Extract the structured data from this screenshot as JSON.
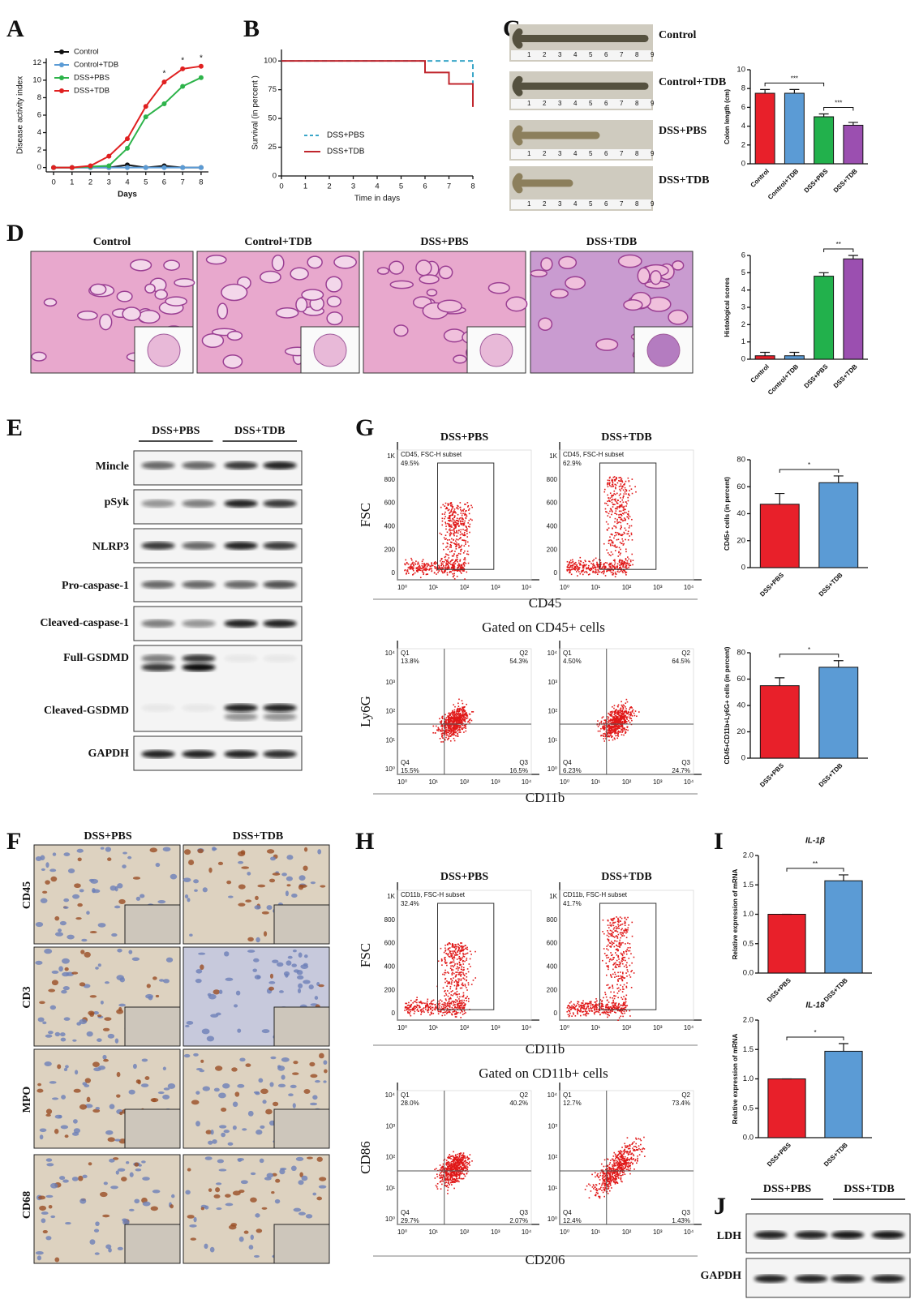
{
  "panel_labels": [
    "A",
    "B",
    "C",
    "D",
    "E",
    "F",
    "G",
    "H",
    "I",
    "J"
  ],
  "chart_data": [
    {
      "type": "line",
      "xlabel": "Days",
      "ylabel": "Disease activity index",
      "x": [
        0,
        1,
        2,
        3,
        4,
        5,
        6,
        7,
        8
      ],
      "xlim": [
        -0.4,
        8.4
      ],
      "xticks": [
        0,
        1,
        2,
        3,
        4,
        5,
        6,
        7,
        8
      ],
      "ylim": [
        -0.5,
        12.5
      ],
      "yticks": [
        0,
        2,
        4,
        6,
        8,
        10,
        12
      ],
      "legend": "upper left",
      "series": [
        {
          "name": "Control",
          "color": "#111111",
          "values": [
            0,
            0,
            0,
            0,
            0.3,
            0,
            0.2,
            0,
            0
          ]
        },
        {
          "name": "Control+TDB",
          "color": "#5b9bd5",
          "values": [
            0,
            0,
            0,
            0,
            0,
            0,
            0,
            0,
            0
          ]
        },
        {
          "name": "DSS+PBS",
          "color": "#2db34a",
          "values": [
            0,
            0,
            0.1,
            0.2,
            2.2,
            5.8,
            7.3,
            9.3,
            10.3
          ]
        },
        {
          "name": "DSS+TDB",
          "color": "#e02020",
          "values": [
            0,
            0,
            0.2,
            1.3,
            3.3,
            7.0,
            9.8,
            11.3,
            11.6
          ]
        }
      ],
      "annotations": [
        {
          "text": "*",
          "x": 6
        },
        {
          "text": "*",
          "x": 7
        },
        {
          "text": "*",
          "x": 8
        }
      ]
    },
    {
      "type": "step",
      "xlabel": "Time in days",
      "ylabel": "Survival (in percent )",
      "xlim": [
        0,
        8
      ],
      "xticks": [
        0,
        1,
        2,
        3,
        4,
        5,
        6,
        7,
        8
      ],
      "ylim": [
        0,
        110
      ],
      "yticks": [
        0,
        25,
        50,
        75,
        100
      ],
      "legend": "lower left",
      "series": [
        {
          "name": "DSS+PBS",
          "color": "#3aa6c8",
          "style": "dashed",
          "x": [
            0,
            8,
            8
          ],
          "values": [
            100,
            100,
            75
          ]
        },
        {
          "name": "DSS+TDB",
          "color": "#c0262d",
          "style": "solid",
          "x": [
            0,
            6,
            7,
            8
          ],
          "values": [
            100,
            90,
            80,
            60
          ]
        }
      ]
    },
    {
      "type": "bar",
      "ylabel": "Colon length (cm)",
      "categories": [
        "Control",
        "Control+TDB",
        "DSS+PBS",
        "DSS+TDB"
      ],
      "values": [
        7.5,
        7.5,
        5.0,
        4.1
      ],
      "errors": [
        0.4,
        0.4,
        0.3,
        0.3
      ],
      "colors": [
        "#e8202a",
        "#5b9bd5",
        "#22b14c",
        "#9b4fb0"
      ],
      "ylim": [
        0,
        10
      ],
      "yticks": [
        0,
        2,
        4,
        6,
        8,
        10
      ],
      "significance": [
        {
          "label": "***",
          "between": [
            "Control",
            "DSS+PBS"
          ]
        },
        {
          "label": "***",
          "between": [
            "DSS+PBS",
            "DSS+TDB"
          ]
        }
      ]
    },
    {
      "type": "bar",
      "ylabel": "Histological scores",
      "categories": [
        "Control",
        "Control+TDB",
        "DSS+PBS",
        "DSS+TDB"
      ],
      "values": [
        0.2,
        0.2,
        4.8,
        5.8
      ],
      "errors": [
        0.2,
        0.2,
        0.2,
        0.2
      ],
      "colors": [
        "#e8202a",
        "#5b9bd5",
        "#22b14c",
        "#9b4fb0"
      ],
      "ylim": [
        0,
        6
      ],
      "yticks": [
        0,
        1,
        2,
        3,
        4,
        5,
        6
      ],
      "significance": [
        {
          "label": "**",
          "between": [
            "DSS+PBS",
            "DSS+TDB"
          ]
        }
      ]
    },
    {
      "type": "bar",
      "ylabel": "CD45+ cells (in percent)",
      "categories": [
        "DSS+PBS",
        "DSS+TDB"
      ],
      "values": [
        47,
        63
      ],
      "errors": [
        8,
        5
      ],
      "colors": [
        "#e8202a",
        "#5b9bd5"
      ],
      "ylim": [
        0,
        80
      ],
      "yticks": [
        0,
        20,
        40,
        60,
        80
      ],
      "significance": [
        {
          "label": "*",
          "between": [
            "DSS+PBS",
            "DSS+TDB"
          ]
        }
      ]
    },
    {
      "type": "bar",
      "ylabel": "CD45+CD11b+Ly6G+ cells (in percent)",
      "categories": [
        "DSS+PBS",
        "DSS+TDB"
      ],
      "values": [
        55,
        69
      ],
      "errors": [
        6,
        5
      ],
      "colors": [
        "#e8202a",
        "#5b9bd5"
      ],
      "ylim": [
        0,
        80
      ],
      "yticks": [
        0,
        20,
        40,
        60,
        80
      ],
      "significance": [
        {
          "label": "*",
          "between": [
            "DSS+PBS",
            "DSS+TDB"
          ]
        }
      ]
    },
    {
      "type": "bar",
      "title": "IL-1β",
      "ylabel": "Relative expression of mRNA",
      "categories": [
        "DSS+PBS",
        "DSS+TDB"
      ],
      "values": [
        1.0,
        1.57
      ],
      "errors": [
        0,
        0.1
      ],
      "colors": [
        "#e8202a",
        "#5b9bd5"
      ],
      "ylim": [
        0,
        2
      ],
      "yticks": [
        {
          "value": 0,
          "label": "0.0"
        },
        0.5,
        {
          "value": 1,
          "label": "1.0"
        },
        1.5,
        {
          "value": 2,
          "label": "2.0"
        }
      ],
      "significance": [
        {
          "label": "**",
          "between": [
            "DSS+PBS",
            "DSS+TDB"
          ]
        }
      ]
    },
    {
      "type": "bar",
      "title": "IL-18",
      "ylabel": "Relative expression of mRNA",
      "categories": [
        "DSS+PBS",
        "DSS+TDB"
      ],
      "values": [
        1.0,
        1.47
      ],
      "errors": [
        0,
        0.13
      ],
      "colors": [
        "#e8202a",
        "#5b9bd5"
      ],
      "ylim": [
        0,
        2
      ],
      "yticks": [
        {
          "value": 0,
          "label": "0.0"
        },
        0.5,
        {
          "value": 1,
          "label": "1.0"
        },
        1.5,
        {
          "value": 2,
          "label": "2.0"
        }
      ],
      "significance": [
        {
          "label": "*",
          "between": [
            "DSS+PBS",
            "DSS+TDB"
          ]
        }
      ]
    }
  ],
  "colon_photos": {
    "labels": [
      "Control",
      "Control+TDB",
      "DSS+PBS",
      "DSS+TDB"
    ],
    "ruler": [
      "1",
      "2",
      "3",
      "4",
      "5",
      "6",
      "7",
      "8",
      "9"
    ]
  },
  "histology": {
    "labels": [
      "Control",
      "Control+TDB",
      "DSS+PBS",
      "DSS+TDB"
    ]
  },
  "western_E": {
    "groups": [
      "DSS+PBS",
      "DSS+TDB"
    ],
    "bands": [
      "Mincle",
      "pSyk",
      "NLRP3",
      "Pro-caspase-1",
      "Cleaved-caspase-1",
      "Full-GSDMD",
      "Cleaved-GSDMD",
      "GAPDH"
    ]
  },
  "ihc_F": {
    "groups": [
      "DSS+PBS",
      "DSS+TDB"
    ],
    "markers": [
      "CD45",
      "CD3",
      "MPO",
      "CD68"
    ]
  },
  "flow_axes": {
    "log_ticks": [
      "10⁰",
      "10¹",
      "10²",
      "10³",
      "10⁴"
    ],
    "fsc_ticks": [
      "1K",
      "800",
      "600",
      "400",
      "200",
      "0"
    ]
  },
  "flow_G": {
    "groups": [
      "DSS+PBS",
      "DSS+TDB"
    ],
    "gate": {
      "x_label": "CD45",
      "y_label": "FSC",
      "subset": "CD45, FSC-H subset",
      "percents": [
        "49.5%",
        "62.9%"
      ]
    },
    "quadrant": {
      "title": "Gated on CD45+ cells",
      "x_label": "CD11b",
      "y_label": "Ly6G",
      "plots": [
        [
          {
            "name": "Q1",
            "percent": "13.8%"
          },
          {
            "name": "Q2",
            "percent": "54.3%"
          },
          {
            "name": "Q4",
            "percent": "15.5%"
          },
          {
            "name": "Q3",
            "percent": "16.5%"
          }
        ],
        [
          {
            "name": "Q1",
            "percent": "4.50%"
          },
          {
            "name": "Q2",
            "percent": "64.5%"
          },
          {
            "name": "Q4",
            "percent": "6.23%"
          },
          {
            "name": "Q3",
            "percent": "24.7%"
          }
        ]
      ]
    }
  },
  "flow_H": {
    "groups": [
      "DSS+PBS",
      "DSS+TDB"
    ],
    "gate": {
      "x_label": "CD11b",
      "y_label": "FSC",
      "subset": "CD11b, FSC-H subset",
      "percents": [
        "32.4%",
        "41.7%"
      ]
    },
    "quadrant": {
      "title": "Gated on CD11b+ cells",
      "x_label": "CD206",
      "y_label": "CD86",
      "plots": [
        [
          {
            "name": "Q1",
            "percent": "28.0%"
          },
          {
            "name": "Q2",
            "percent": "40.2%"
          },
          {
            "name": "Q4",
            "percent": "29.7%"
          },
          {
            "name": "Q3",
            "percent": "2.07%"
          }
        ],
        [
          {
            "name": "Q1",
            "percent": "12.7%"
          },
          {
            "name": "Q2",
            "percent": "73.4%"
          },
          {
            "name": "Q4",
            "percent": "12.4%"
          },
          {
            "name": "Q3",
            "percent": "1.43%"
          }
        ]
      ]
    }
  },
  "western_J": {
    "groups": [
      "DSS+PBS",
      "DSS+TDB"
    ],
    "bands": [
      "LDH",
      "GAPDH"
    ]
  }
}
